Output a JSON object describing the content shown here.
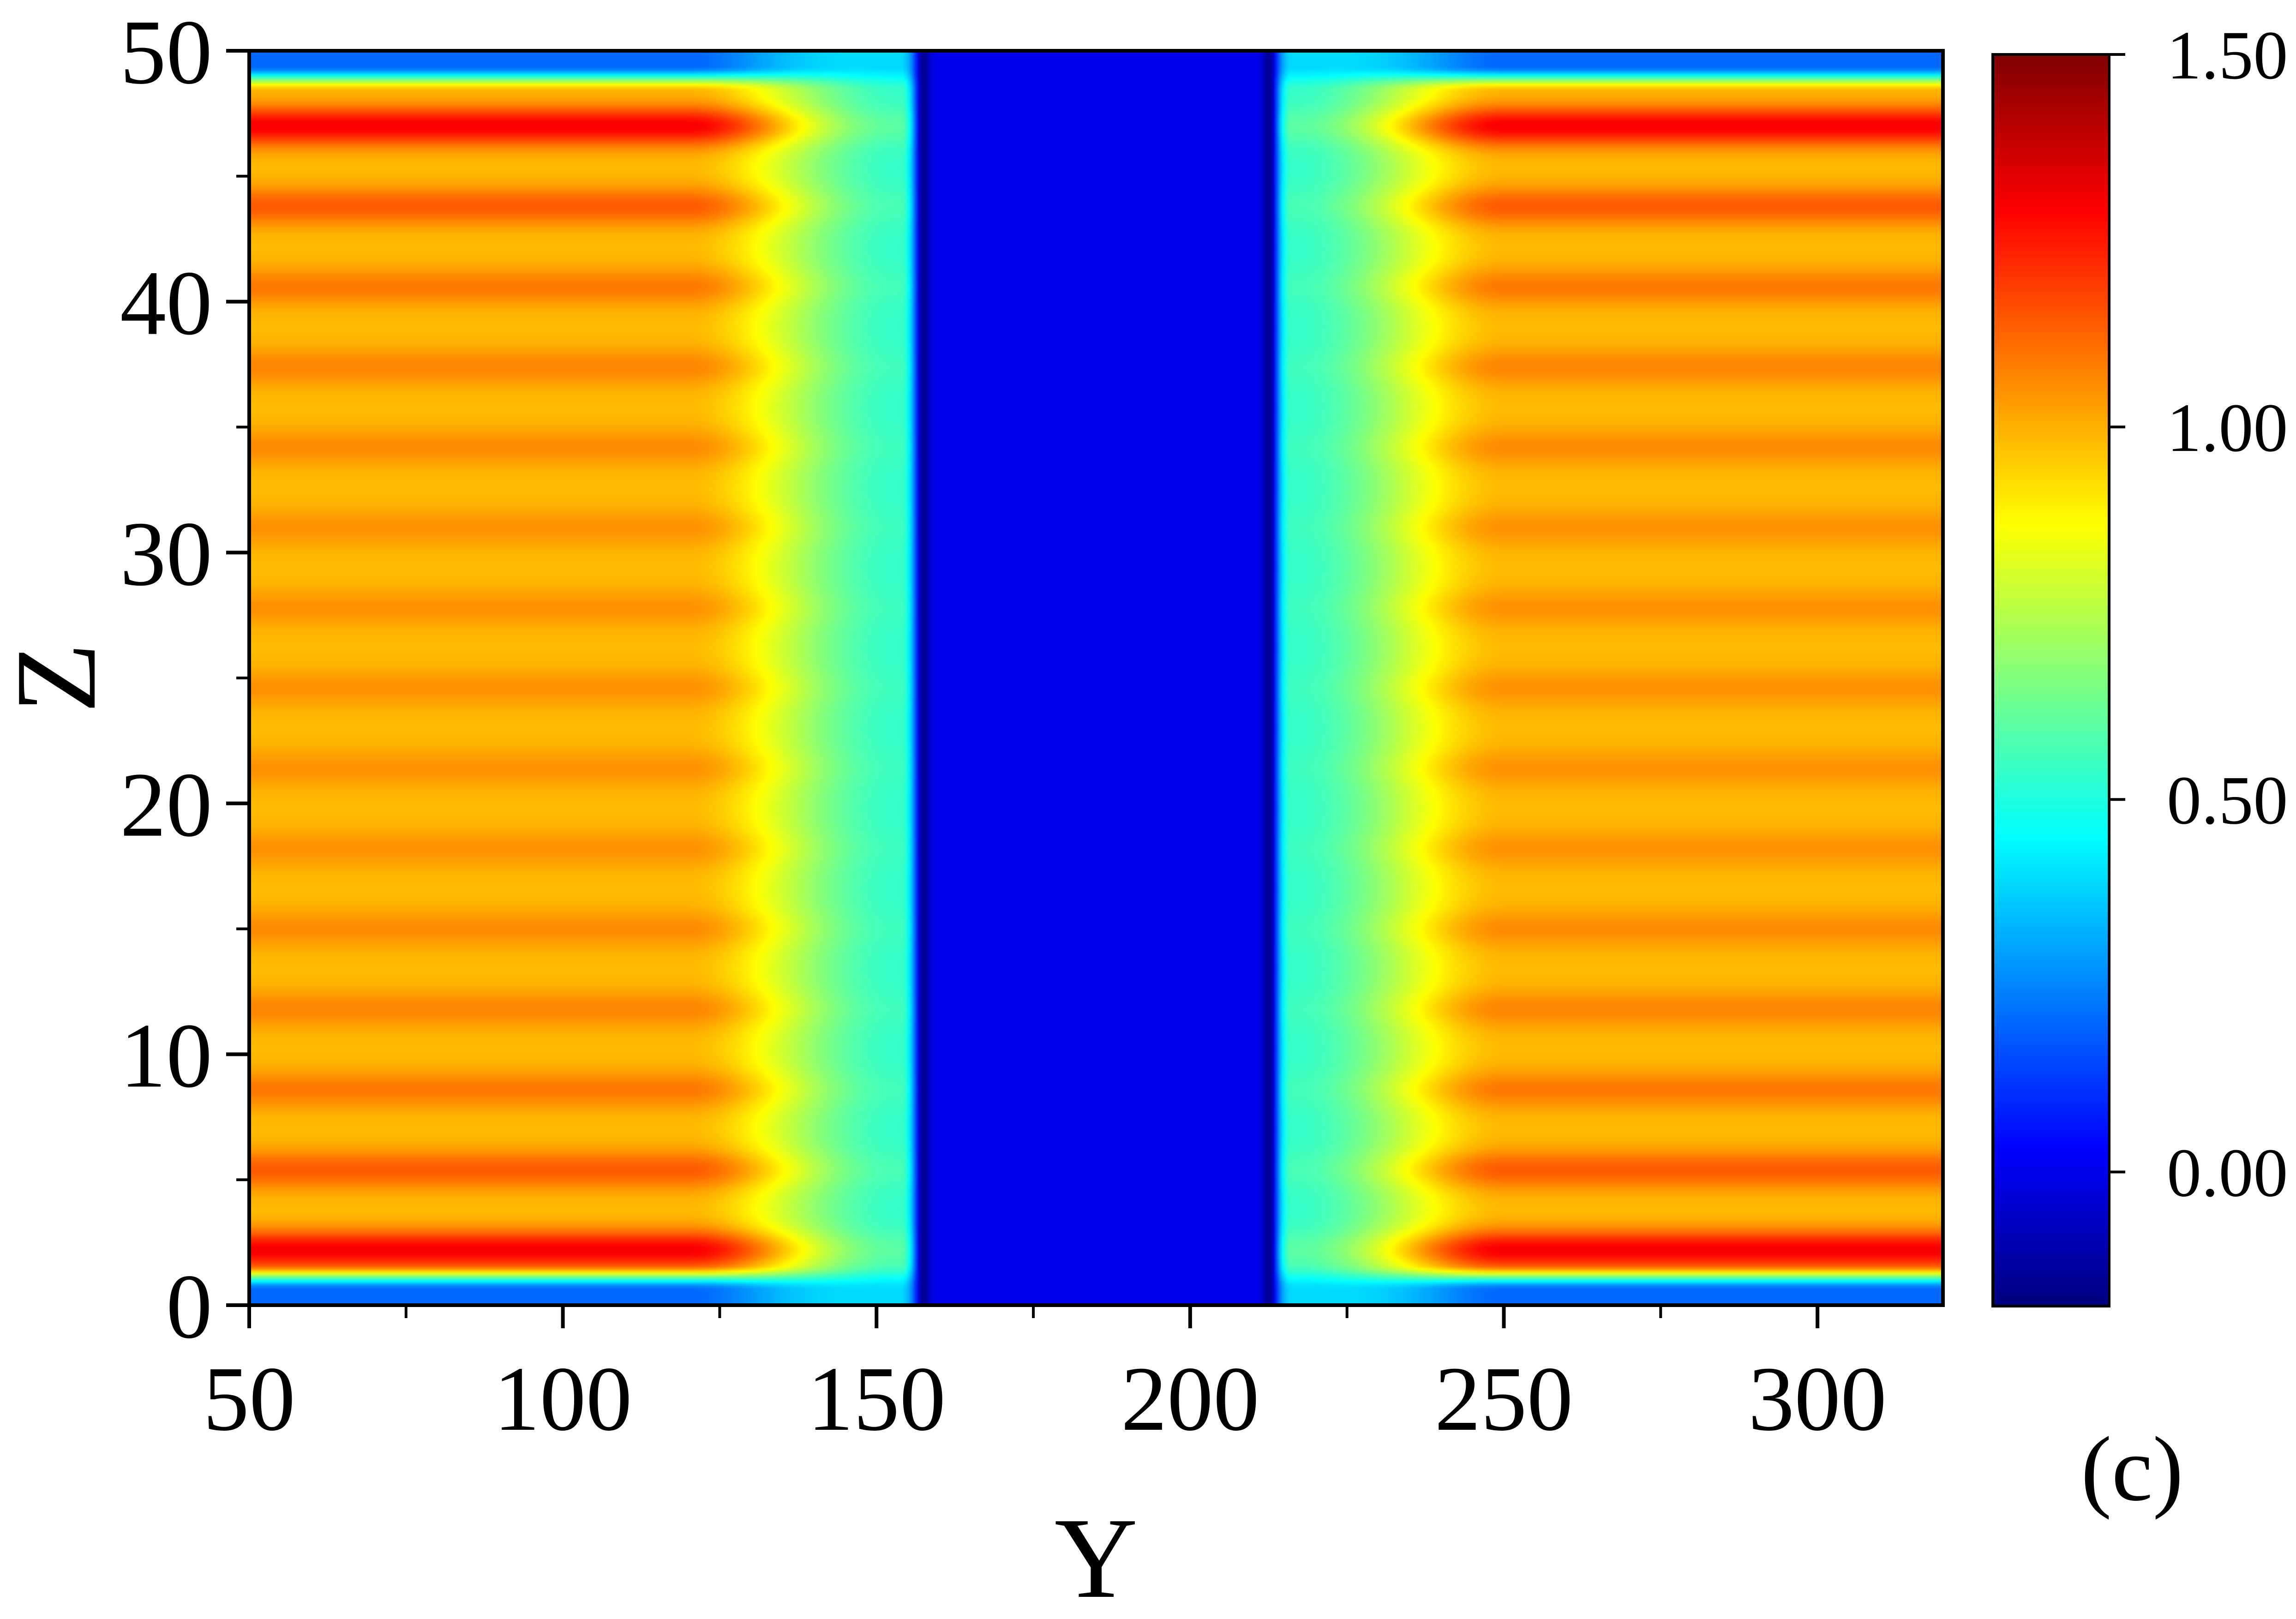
{
  "chart_data": {
    "type": "heatmap",
    "panel_label": "(c)",
    "xlabel": "Y",
    "ylabel": "Z",
    "xlim": [
      50,
      320
    ],
    "ylim": [
      0,
      50
    ],
    "x_ticks": [
      50,
      100,
      150,
      200,
      250,
      300
    ],
    "x_tick_labels": [
      "50",
      "100",
      "150",
      "200",
      "250",
      "300"
    ],
    "y_ticks": [
      0,
      10,
      20,
      30,
      40,
      50
    ],
    "y_tick_labels": [
      "0",
      "10",
      "20",
      "30",
      "40",
      "50"
    ],
    "colorbar": {
      "range": [
        -0.18,
        1.5
      ],
      "ticks": [
        0.0,
        0.5,
        1.0,
        1.5
      ],
      "tick_labels": [
        "0.00",
        "0.50",
        "1.00",
        "1.50"
      ],
      "colormap": "jet"
    },
    "field": {
      "outer_level": 1.0,
      "inner_level": 0.0,
      "gap_y_range": [
        157,
        213
      ],
      "transition_y_range": [
        {
          "from": 120,
          "to": 153
        },
        {
          "from": 217,
          "to": 250
        }
      ],
      "dark_line_y": [
        157.5,
        212.5
      ],
      "dark_line_value": -0.15,
      "edge_band_z": [
        1,
        49
      ],
      "fringe_peak_z": [
        2.2,
        5.4,
        8.6,
        11.8,
        15,
        18.2,
        21.4,
        24.6,
        27.8,
        31,
        34.2,
        37.4,
        40.6,
        43.8,
        47
      ],
      "fringe_peak_values": [
        1.3,
        1.14,
        1.09,
        1.07,
        1.06,
        1.05,
        1.05,
        1.05,
        1.05,
        1.05,
        1.06,
        1.07,
        1.09,
        1.14,
        1.3
      ],
      "background_value": 0.98
    }
  }
}
